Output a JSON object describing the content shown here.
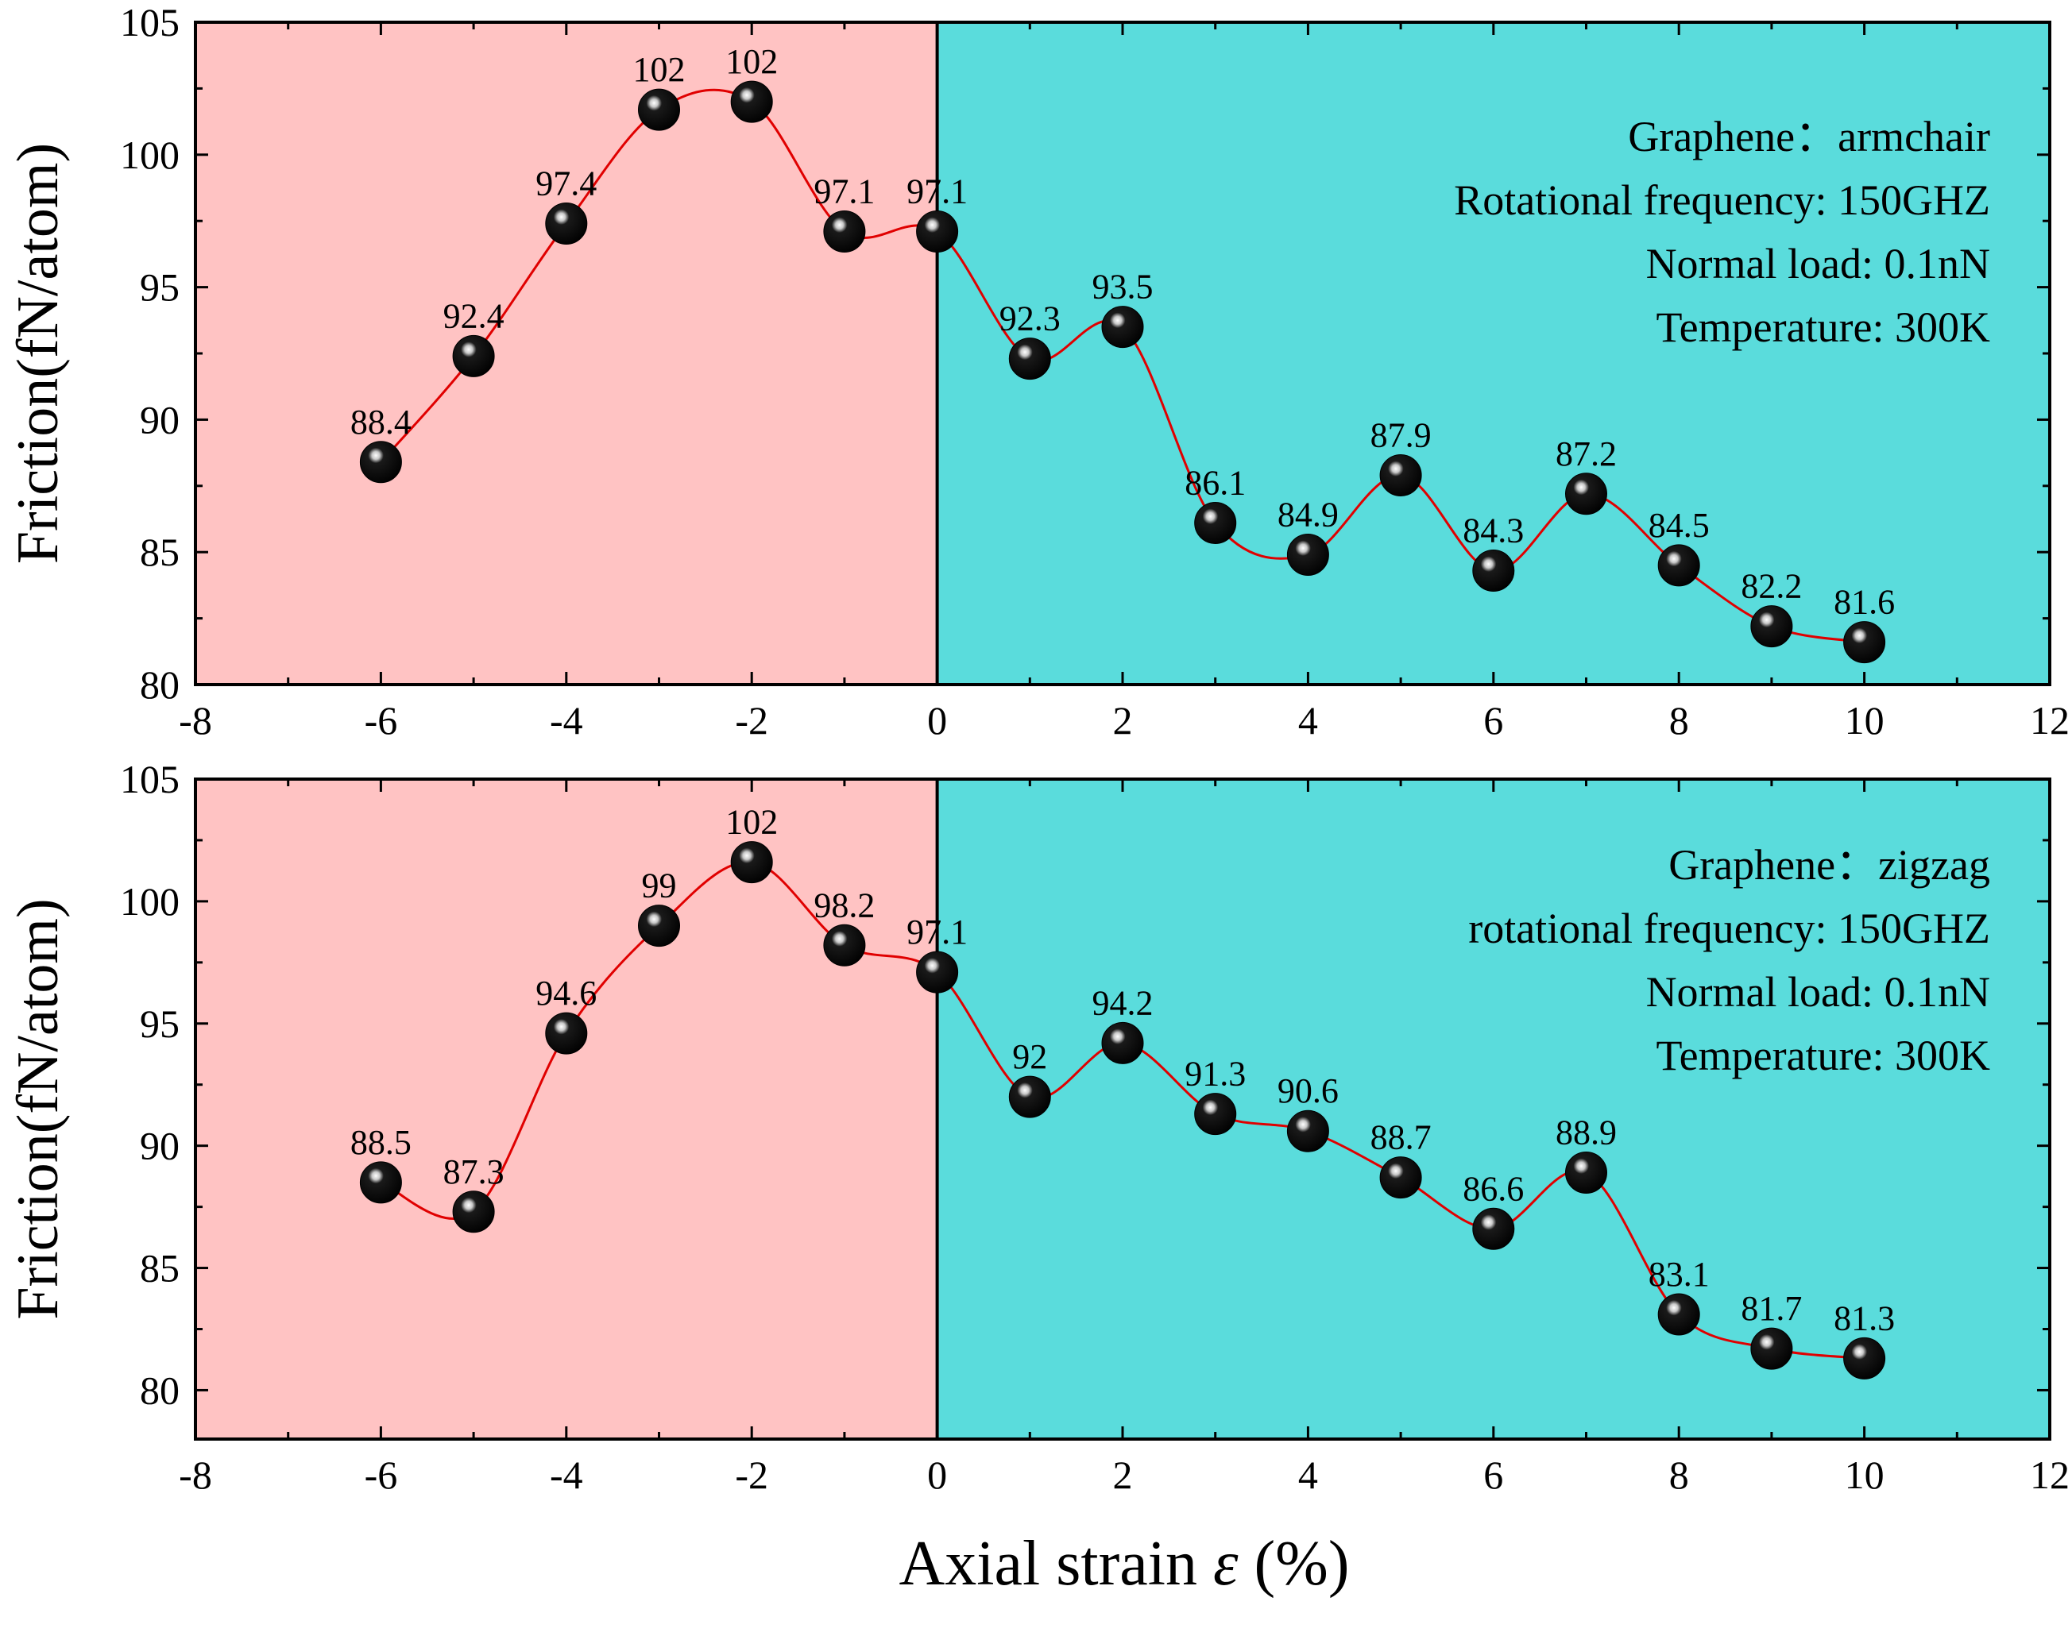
{
  "colors": {
    "compression_region": "#ffc3c3",
    "tension_region": "#5adcdc",
    "curve": "#e00000",
    "marker": "#000000",
    "axis": "#000000"
  },
  "shared": {
    "xlabel_prefix": "Axial strain ",
    "xlabel_symbol": "ε",
    "xlabel_suffix": " (%)"
  },
  "chart_data": [
    {
      "type": "scatter",
      "xlabel": "Axial strain ε (%)",
      "ylabel": "Friction(fN/atom)",
      "xlim": [
        -8,
        12
      ],
      "ylim": [
        80,
        105
      ],
      "x_ticks": [
        -8,
        -6,
        -4,
        -2,
        0,
        2,
        4,
        6,
        8,
        10,
        12
      ],
      "y_ticks": [
        80,
        85,
        90,
        95,
        100,
        105
      ],
      "x_tick_labels": [
        "-8",
        "-6",
        "-4",
        "-2",
        "0",
        "2",
        "4",
        "6",
        "8",
        "10",
        "12"
      ],
      "y_tick_labels": [
        "80",
        "85",
        "90",
        "95",
        "100",
        "105"
      ],
      "regions": [
        {
          "name": "compression",
          "x_from": -8,
          "x_to": 0
        },
        {
          "name": "tension",
          "x_from": 0,
          "x_to": 12
        }
      ],
      "series": [
        {
          "name": "Graphene armchair",
          "x": [
            -6,
            -5,
            -4,
            -3,
            -2,
            -1,
            0,
            1,
            2,
            3,
            4,
            5,
            6,
            7,
            8,
            9,
            10
          ],
          "values": [
            88.4,
            92.4,
            97.4,
            101.7,
            102,
            97.1,
            97.1,
            92.3,
            93.5,
            86.1,
            84.9,
            87.9,
            84.3,
            87.2,
            84.5,
            82.2,
            81.6
          ],
          "labels": [
            "88.4",
            "92.4",
            "97.4",
            "102",
            "102",
            "97.1",
            "97.1",
            "92.3",
            "93.5",
            "86.1",
            "84.9",
            "87.9",
            "84.3",
            "87.2",
            "84.5",
            "82.2",
            "81.6"
          ]
        }
      ],
      "annotations": [
        "Graphene：armchair",
        "Rotational frequency: 150GHZ",
        "Normal load:  0.1nN",
        "Temperature: 300K"
      ]
    },
    {
      "type": "scatter",
      "xlabel": "Axial strain ε (%)",
      "ylabel": "Friction(fN/atom)",
      "xlim": [
        -8,
        12
      ],
      "ylim": [
        78,
        105
      ],
      "x_ticks": [
        -8,
        -6,
        -4,
        -2,
        0,
        2,
        4,
        6,
        8,
        10,
        12
      ],
      "y_ticks": [
        80,
        85,
        90,
        95,
        100,
        105
      ],
      "x_tick_labels": [
        "-8",
        "-6",
        "-4",
        "-2",
        "0",
        "2",
        "4",
        "6",
        "8",
        "10",
        "12"
      ],
      "y_tick_labels": [
        "80",
        "85",
        "90",
        "95",
        "100",
        "105"
      ],
      "regions": [
        {
          "name": "compression",
          "x_from": -8,
          "x_to": 0
        },
        {
          "name": "tension",
          "x_from": 0,
          "x_to": 12
        }
      ],
      "series": [
        {
          "name": "Graphene zigzag",
          "x": [
            -6,
            -5,
            -4,
            -3,
            -2,
            -1,
            0,
            1,
            2,
            3,
            4,
            5,
            6,
            7,
            8,
            9,
            10
          ],
          "values": [
            88.5,
            87.3,
            94.6,
            99,
            101.6,
            98.2,
            97.1,
            92,
            94.2,
            91.3,
            90.6,
            88.7,
            86.6,
            88.9,
            83.1,
            81.7,
            81.3
          ],
          "labels": [
            "88.5",
            "87.3",
            "94.6",
            "99",
            "102",
            "98.2",
            "97.1",
            "92",
            "94.2",
            "91.3",
            "90.6",
            "88.7",
            "86.6",
            "88.9",
            "83.1",
            "81.7",
            "81.3"
          ]
        }
      ],
      "annotations": [
        "Graphene：zigzag",
        "rotational frequency: 150GHZ",
        "Normal load:  0.1nN",
        "Temperature: 300K"
      ]
    }
  ]
}
